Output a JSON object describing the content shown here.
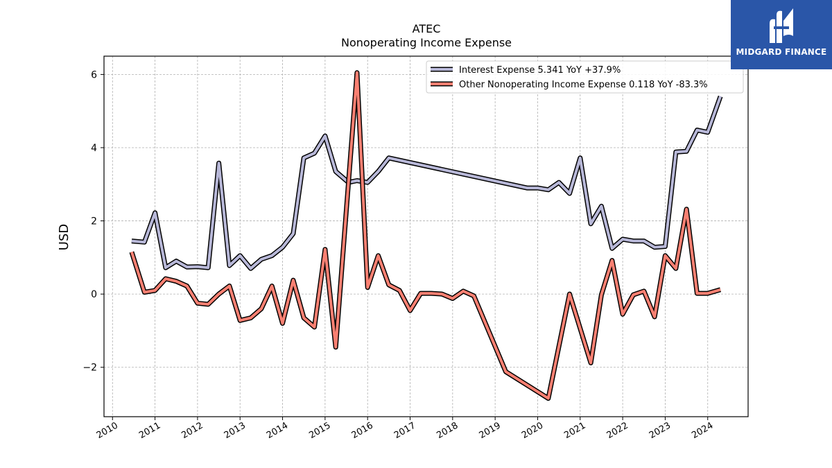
{
  "brand": {
    "name": "MIDGARD FINANCE",
    "bg_color": "#2a56a8"
  },
  "chart_data": {
    "type": "line",
    "title": "ATEC",
    "subtitle": "Nonoperating Income Expense",
    "xlabel": "",
    "ylabel": "USD",
    "xlim": [
      2009.8,
      2024.95
    ],
    "ylim": [
      -3.35,
      6.5
    ],
    "yticks": [
      -2,
      0,
      2,
      4,
      6
    ],
    "yticklabels": [
      "−2",
      "0",
      "2",
      "4",
      "6"
    ],
    "xticks": [
      2010,
      2011,
      2012,
      2013,
      2014,
      2015,
      2016,
      2017,
      2018,
      2019,
      2020,
      2021,
      2022,
      2023,
      2024
    ],
    "xticklabels": [
      "2010",
      "2011",
      "2012",
      "2013",
      "2014",
      "2015",
      "2016",
      "2017",
      "2018",
      "2019",
      "2020",
      "2021",
      "2022",
      "2023",
      "2024"
    ],
    "grid": true,
    "legend_position": "top-right",
    "series": [
      {
        "name": "Interest Expense",
        "legend_label": "Interest Expense  5.341 YoY +37.9%",
        "color": "#b8b8d8",
        "x": [
          2010.45,
          2010.75,
          2011.0,
          2011.25,
          2011.5,
          2011.75,
          2012.0,
          2012.25,
          2012.5,
          2012.75,
          2013.0,
          2013.25,
          2013.5,
          2013.75,
          2014.0,
          2014.25,
          2014.5,
          2014.75,
          2015.0,
          2015.25,
          2015.55,
          2015.75,
          2016.0,
          2016.25,
          2016.5,
          2019.75,
          2020.0,
          2020.25,
          2020.5,
          2020.75,
          2021.0,
          2021.25,
          2021.5,
          2021.75,
          2022.0,
          2022.25,
          2022.5,
          2022.75,
          2023.0,
          2023.25,
          2023.5,
          2023.75,
          2024.0,
          2024.3
        ],
        "y": [
          1.45,
          1.42,
          2.22,
          0.72,
          0.9,
          0.74,
          0.75,
          0.72,
          3.58,
          0.78,
          1.05,
          0.7,
          0.95,
          1.05,
          1.28,
          1.65,
          3.72,
          3.85,
          4.32,
          3.35,
          3.05,
          3.1,
          3.05,
          3.35,
          3.72,
          2.9,
          2.9,
          2.85,
          3.05,
          2.75,
          3.72,
          1.92,
          2.4,
          1.25,
          1.5,
          1.45,
          1.45,
          1.28,
          1.3,
          3.88,
          3.9,
          4.48,
          4.42,
          5.4
        ]
      },
      {
        "name": "Other Nonoperating Income Expense",
        "legend_label": "Other Nonoperating Income Expense  0.118 YoY -83.3%",
        "color": "#fa8072",
        "x": [
          2010.45,
          2010.75,
          2011.0,
          2011.25,
          2011.5,
          2011.75,
          2012.0,
          2012.25,
          2012.5,
          2012.75,
          2013.0,
          2013.25,
          2013.5,
          2013.75,
          2014.0,
          2014.25,
          2014.5,
          2014.75,
          2015.0,
          2015.25,
          2015.75,
          2016.0,
          2016.25,
          2016.5,
          2016.75,
          2017.0,
          2017.25,
          2017.5,
          2017.75,
          2018.0,
          2018.25,
          2018.5,
          2019.25,
          2020.25,
          2020.75,
          2021.25,
          2021.5,
          2021.75,
          2022.0,
          2022.25,
          2022.5,
          2022.75,
          2023.0,
          2023.25,
          2023.5,
          2023.75,
          2024.0,
          2024.3
        ],
        "y": [
          1.15,
          0.05,
          0.1,
          0.42,
          0.35,
          0.22,
          -0.25,
          -0.28,
          0.0,
          0.22,
          -0.72,
          -0.65,
          -0.4,
          0.22,
          -0.8,
          0.38,
          -0.65,
          -0.9,
          1.22,
          -1.45,
          6.05,
          0.18,
          1.05,
          0.25,
          0.1,
          -0.45,
          0.02,
          0.02,
          0.0,
          -0.12,
          0.08,
          -0.05,
          -2.12,
          -2.85,
          0.0,
          -1.88,
          -0.02,
          0.92,
          -0.55,
          -0.02,
          0.08,
          -0.62,
          1.05,
          0.7,
          2.32,
          0.02,
          0.02,
          0.12
        ]
      }
    ]
  }
}
